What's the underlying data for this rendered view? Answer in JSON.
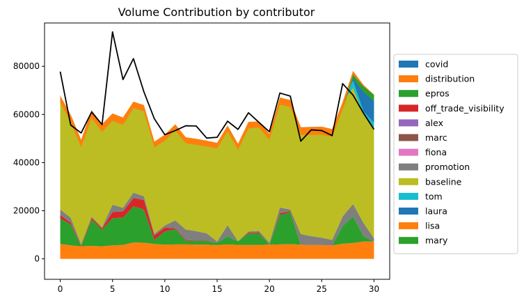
{
  "chart_data": {
    "type": "area",
    "stacked": true,
    "title": "Volume Contribution by contributor",
    "xlabel": "",
    "ylabel": "",
    "xlim": [
      -1.5,
      31.5
    ],
    "ylim": [
      -8500,
      98000
    ],
    "x_ticks": [
      0,
      5,
      10,
      15,
      20,
      25,
      30
    ],
    "y_ticks": [
      0,
      20000,
      40000,
      60000,
      80000
    ],
    "grid": false,
    "legend_position": "right",
    "x": [
      0,
      1,
      2,
      3,
      4,
      5,
      6,
      7,
      8,
      9,
      10,
      11,
      12,
      13,
      14,
      15,
      16,
      17,
      18,
      19,
      20,
      21,
      22,
      23,
      24,
      25,
      26,
      27,
      28,
      29,
      30
    ],
    "series": [
      {
        "name": "covid",
        "color": "#1f77b4",
        "values": [
          0,
          0,
          0,
          0,
          0,
          0,
          0,
          0,
          0,
          0,
          0,
          0,
          0,
          0,
          0,
          0,
          0,
          0,
          0,
          0,
          0,
          0,
          0,
          0,
          0,
          0,
          0,
          0,
          0,
          0,
          0
        ]
      },
      {
        "name": "distribution",
        "color": "#ff7f0e",
        "values": [
          6200,
          5600,
          5200,
          5400,
          5200,
          5600,
          5800,
          6800,
          6700,
          6200,
          5900,
          6000,
          6000,
          5900,
          5900,
          5700,
          6000,
          5800,
          5800,
          5800,
          5900,
          6000,
          6100,
          5900,
          5700,
          5700,
          5600,
          6300,
          6600,
          7200,
          7200
        ]
      },
      {
        "name": "epros",
        "color": "#2ca02c",
        "values": [
          10600,
          8700,
          0,
          10900,
          6900,
          11300,
          11300,
          15000,
          13800,
          1700,
          5500,
          6300,
          1500,
          1500,
          1500,
          1000,
          3400,
          1500,
          4700,
          4800,
          0,
          12200,
          13300,
          0,
          0,
          0,
          0,
          7300,
          11000,
          2200,
          0
        ]
      },
      {
        "name": "off_trade_visibility",
        "color": "#d62728",
        "values": [
          1400,
          800,
          300,
          700,
          600,
          2600,
          2600,
          3500,
          4000,
          1800,
          1600,
          400,
          400,
          200,
          200,
          0,
          0,
          0,
          400,
          400,
          0,
          800,
          400,
          0,
          0,
          0,
          0,
          0,
          0,
          0,
          0
        ]
      },
      {
        "name": "alex",
        "color": "#9467bd",
        "values": [
          0,
          0,
          0,
          0,
          0,
          0,
          0,
          0,
          0,
          0,
          0,
          0,
          0,
          0,
          0,
          0,
          0,
          0,
          0,
          0,
          0,
          0,
          0,
          0,
          0,
          0,
          0,
          0,
          0,
          0,
          0
        ]
      },
      {
        "name": "marc",
        "color": "#8c564b",
        "values": [
          0,
          0,
          0,
          0,
          0,
          0,
          0,
          0,
          0,
          0,
          0,
          0,
          0,
          0,
          0,
          0,
          0,
          0,
          0,
          0,
          0,
          0,
          0,
          0,
          0,
          0,
          0,
          0,
          0,
          0,
          0
        ]
      },
      {
        "name": "fiona",
        "color": "#e377c2",
        "values": [
          0,
          0,
          0,
          0,
          0,
          0,
          0,
          0,
          0,
          0,
          0,
          0,
          0,
          0,
          0,
          0,
          0,
          0,
          0,
          0,
          0,
          0,
          0,
          0,
          0,
          0,
          0,
          0,
          0,
          0,
          0
        ]
      },
      {
        "name": "promotion",
        "color": "#7f7f7f",
        "values": [
          2300,
          2000,
          600,
          500,
          400,
          3000,
          1500,
          2200,
          1500,
          700,
          900,
          3300,
          4300,
          3900,
          3000,
          500,
          4600,
          0,
          500,
          600,
          800,
          2300,
          700,
          4400,
          3700,
          3100,
          2300,
          4000,
          5200,
          5500,
          1300
        ]
      },
      {
        "name": "baseline",
        "color": "#bcbd22",
        "values": [
          44500,
          41400,
          41900,
          42800,
          42000,
          37900,
          37500,
          37800,
          37900,
          38300,
          37700,
          39900,
          38300,
          38400,
          38500,
          41000,
          41400,
          40500,
          45500,
          45500,
          45200,
          45700,
          45500,
          44400,
          44400,
          44900,
          44500,
          47500,
          48200,
          45000,
          46000
        ]
      },
      {
        "name": "tom",
        "color": "#17becf",
        "values": [
          2800,
          1400,
          1400,
          1500,
          800,
          0,
          0,
          0,
          0,
          0,
          0,
          0,
          0,
          0,
          0,
          0,
          0,
          0,
          0,
          0,
          0,
          0,
          0,
          0,
          1000,
          1200,
          1500,
          0,
          3000,
          1300,
          2000
        ]
      },
      {
        "name": "laura",
        "color": "#1f77b4",
        "values": [
          0,
          0,
          0,
          0,
          0,
          0,
          0,
          0,
          0,
          0,
          0,
          0,
          0,
          0,
          0,
          0,
          0,
          0,
          0,
          0,
          0,
          0,
          0,
          0,
          0,
          0,
          0,
          0,
          4000,
          11000,
          11700
        ]
      },
      {
        "name": "lisa",
        "color": "#ff7f0e",
        "values": [
          -2800,
          -3200,
          -3000,
          -3400,
          -3100,
          -3100,
          -3000,
          -2700,
          -2600,
          -2400,
          -2500,
          -2500,
          -2500,
          -2500,
          -2400,
          -2300,
          -2400,
          -2500,
          -2700,
          -2600,
          -2400,
          -3000,
          -2900,
          -3200,
          -3300,
          -3300,
          -3200,
          -3000,
          -3000,
          -2900,
          -2700
        ]
      },
      {
        "name": "mary",
        "color": "#2ca02c",
        "values": [
          0,
          0,
          0,
          0,
          0,
          0,
          0,
          0,
          0,
          0,
          0,
          0,
          0,
          0,
          0,
          0,
          0,
          0,
          0,
          0,
          0,
          0,
          0,
          0,
          0,
          0,
          0,
          0,
          1500,
          2300,
          2600
        ]
      }
    ],
    "total_line": {
      "name": "total",
      "color": "#000000",
      "values": [
        77800,
        55600,
        52300,
        61000,
        55800,
        94300,
        74500,
        83200,
        69400,
        58200,
        51600,
        53300,
        55300,
        55200,
        50200,
        50500,
        57200,
        53800,
        60700,
        56700,
        52800,
        68900,
        67600,
        48900,
        53600,
        53300,
        51200,
        72800,
        68000,
        60500,
        53800
      ]
    }
  }
}
